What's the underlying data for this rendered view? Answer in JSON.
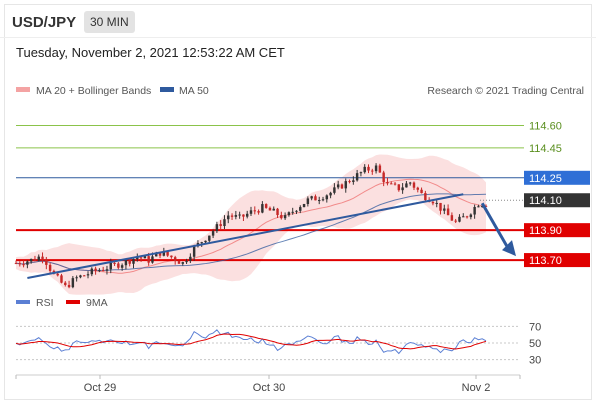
{
  "header": {
    "symbol": "USD/JPY",
    "timeframe": "30 MIN"
  },
  "timestamp": "Tuesday, November 2, 2021 12:53:22 AM CET",
  "legend": {
    "ma20": "MA 20 + Bollinger Bands",
    "ma50": "MA 50",
    "credit": "Research © 2021 Trading Central"
  },
  "rsi_legend": {
    "rsi": "RSI",
    "ma9": "9MA"
  },
  "colors": {
    "up": "#333333",
    "down": "#c62828",
    "ma50": "#2f5a9e",
    "bands": "#f7c6c6",
    "resistance_green": "#8bc34a",
    "support_red": "#e00000",
    "current": "#333333",
    "rsi": "#5b7fd4"
  },
  "chart_data": [
    {
      "type": "candlestick",
      "title": "USD/JPY 30 MIN",
      "y_range": [
        113.5,
        114.75
      ],
      "x_ticks": [
        "Oct 29",
        "Oct 30",
        "Nov 2"
      ],
      "levels": [
        {
          "value": 114.6,
          "label": "114.60",
          "kind": "resistance"
        },
        {
          "value": 114.45,
          "label": "114.45",
          "kind": "resistance"
        },
        {
          "value": 114.25,
          "label": "114.25",
          "kind": "pivot"
        },
        {
          "value": 114.1,
          "label": "114.10",
          "kind": "current"
        },
        {
          "value": 113.9,
          "label": "113.90",
          "kind": "support"
        },
        {
          "value": 113.7,
          "label": "113.70",
          "kind": "support"
        }
      ],
      "close_path": [
        [
          0,
          113.68
        ],
        [
          4,
          113.7
        ],
        [
          7,
          113.73
        ],
        [
          10,
          113.6
        ],
        [
          13,
          113.52
        ],
        [
          16,
          113.58
        ],
        [
          20,
          113.62
        ],
        [
          24,
          113.65
        ],
        [
          28,
          113.68
        ],
        [
          32,
          113.72
        ],
        [
          35,
          113.7
        ],
        [
          38,
          113.75
        ],
        [
          41,
          113.72
        ],
        [
          44,
          113.68
        ],
        [
          47,
          113.78
        ],
        [
          50,
          113.85
        ],
        [
          53,
          113.92
        ],
        [
          56,
          114.0
        ],
        [
          59,
          113.98
        ],
        [
          62,
          114.02
        ],
        [
          65,
          114.05
        ],
        [
          68,
          114.02
        ],
        [
          71,
          113.98
        ],
        [
          74,
          114.05
        ],
        [
          77,
          114.1
        ],
        [
          80,
          114.12
        ],
        [
          83,
          114.15
        ],
        [
          86,
          114.2
        ],
        [
          89,
          114.25
        ],
        [
          92,
          114.3
        ],
        [
          95,
          114.32
        ],
        [
          98,
          114.2
        ],
        [
          101,
          114.18
        ],
        [
          104,
          114.22
        ],
        [
          107,
          114.14
        ],
        [
          110,
          114.1
        ],
        [
          113,
          114.02
        ],
        [
          116,
          113.95
        ],
        [
          119,
          114.0
        ],
        [
          122,
          114.08
        ]
      ],
      "rsi": {
        "levels": [
          70,
          50,
          30
        ],
        "ylim": [
          20,
          80
        ]
      },
      "trendline": {
        "from": [
          3,
          113.58
        ],
        "to": [
          118,
          114.14
        ]
      },
      "forecast_arrow": {
        "from": 114.08,
        "to": 113.74
      }
    }
  ]
}
